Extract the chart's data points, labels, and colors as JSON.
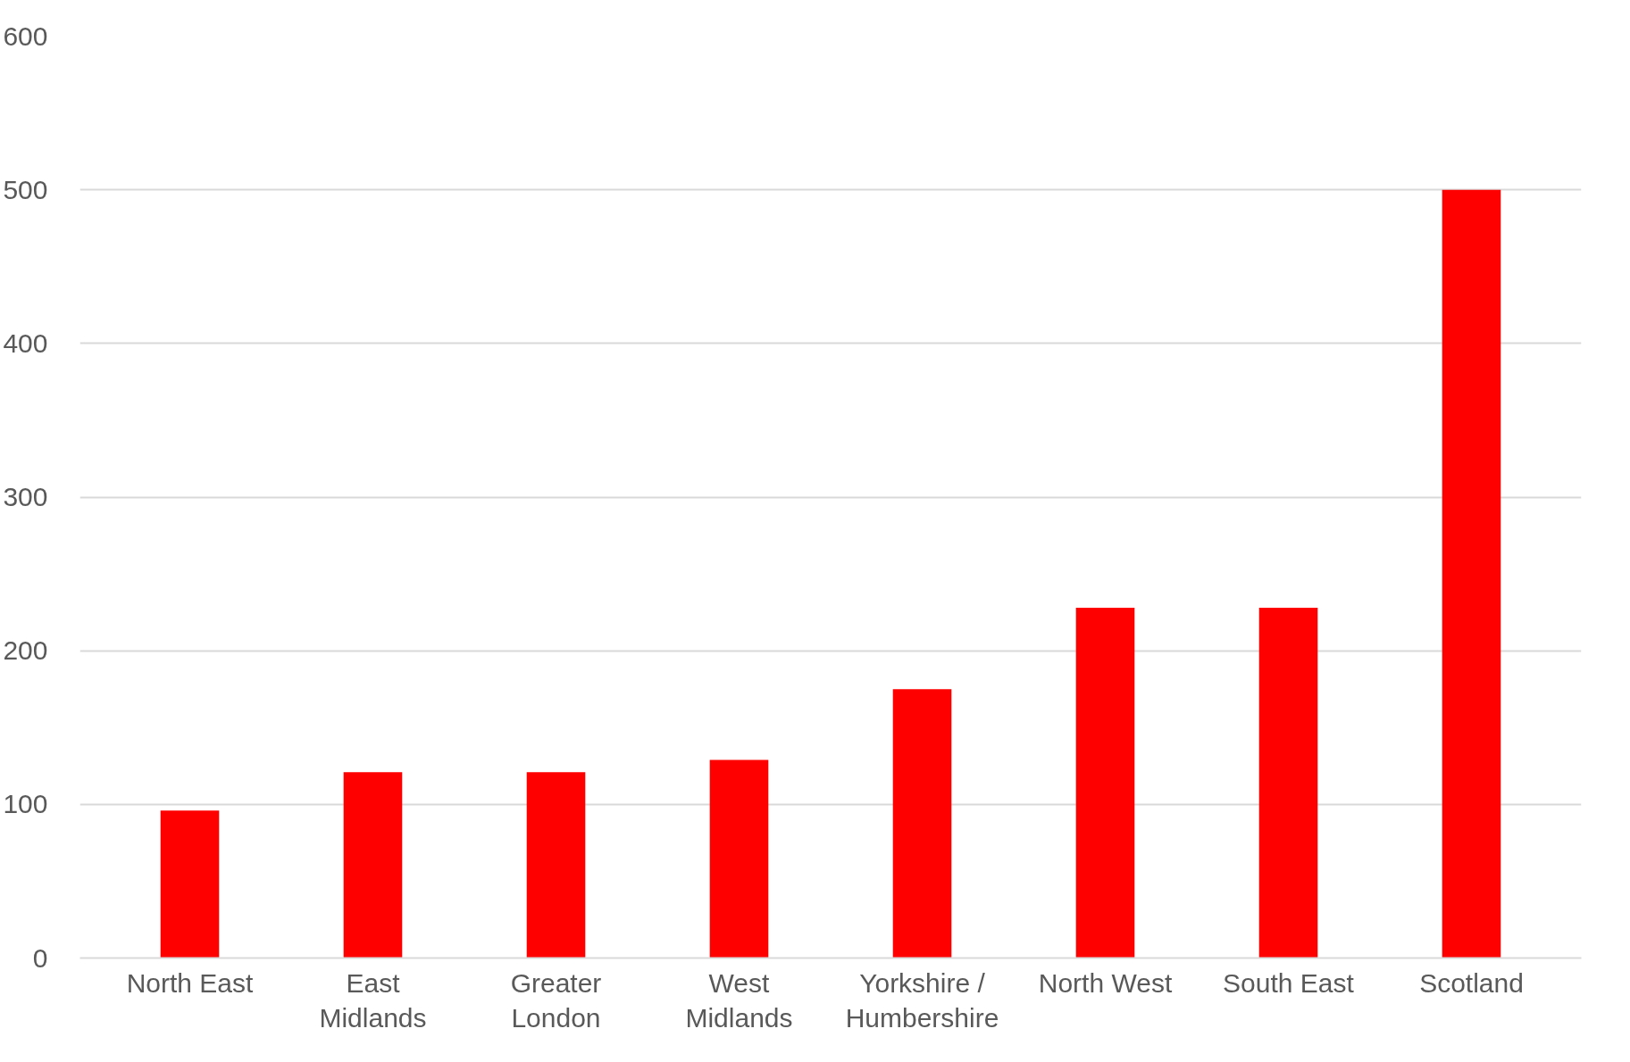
{
  "chart_data": {
    "type": "bar",
    "categories": [
      "North East",
      "East Midlands",
      "Greater London",
      "West Midlands",
      "Yorkshire / Humbershire",
      "North West",
      "South East",
      "Scotland"
    ],
    "values": [
      96,
      121,
      121,
      129,
      175,
      228,
      228,
      500
    ],
    "color": "#ff0000",
    "ylim": [
      0,
      600
    ],
    "yticks": [
      0,
      100,
      200,
      300,
      400,
      500,
      600
    ],
    "grid": "y"
  }
}
